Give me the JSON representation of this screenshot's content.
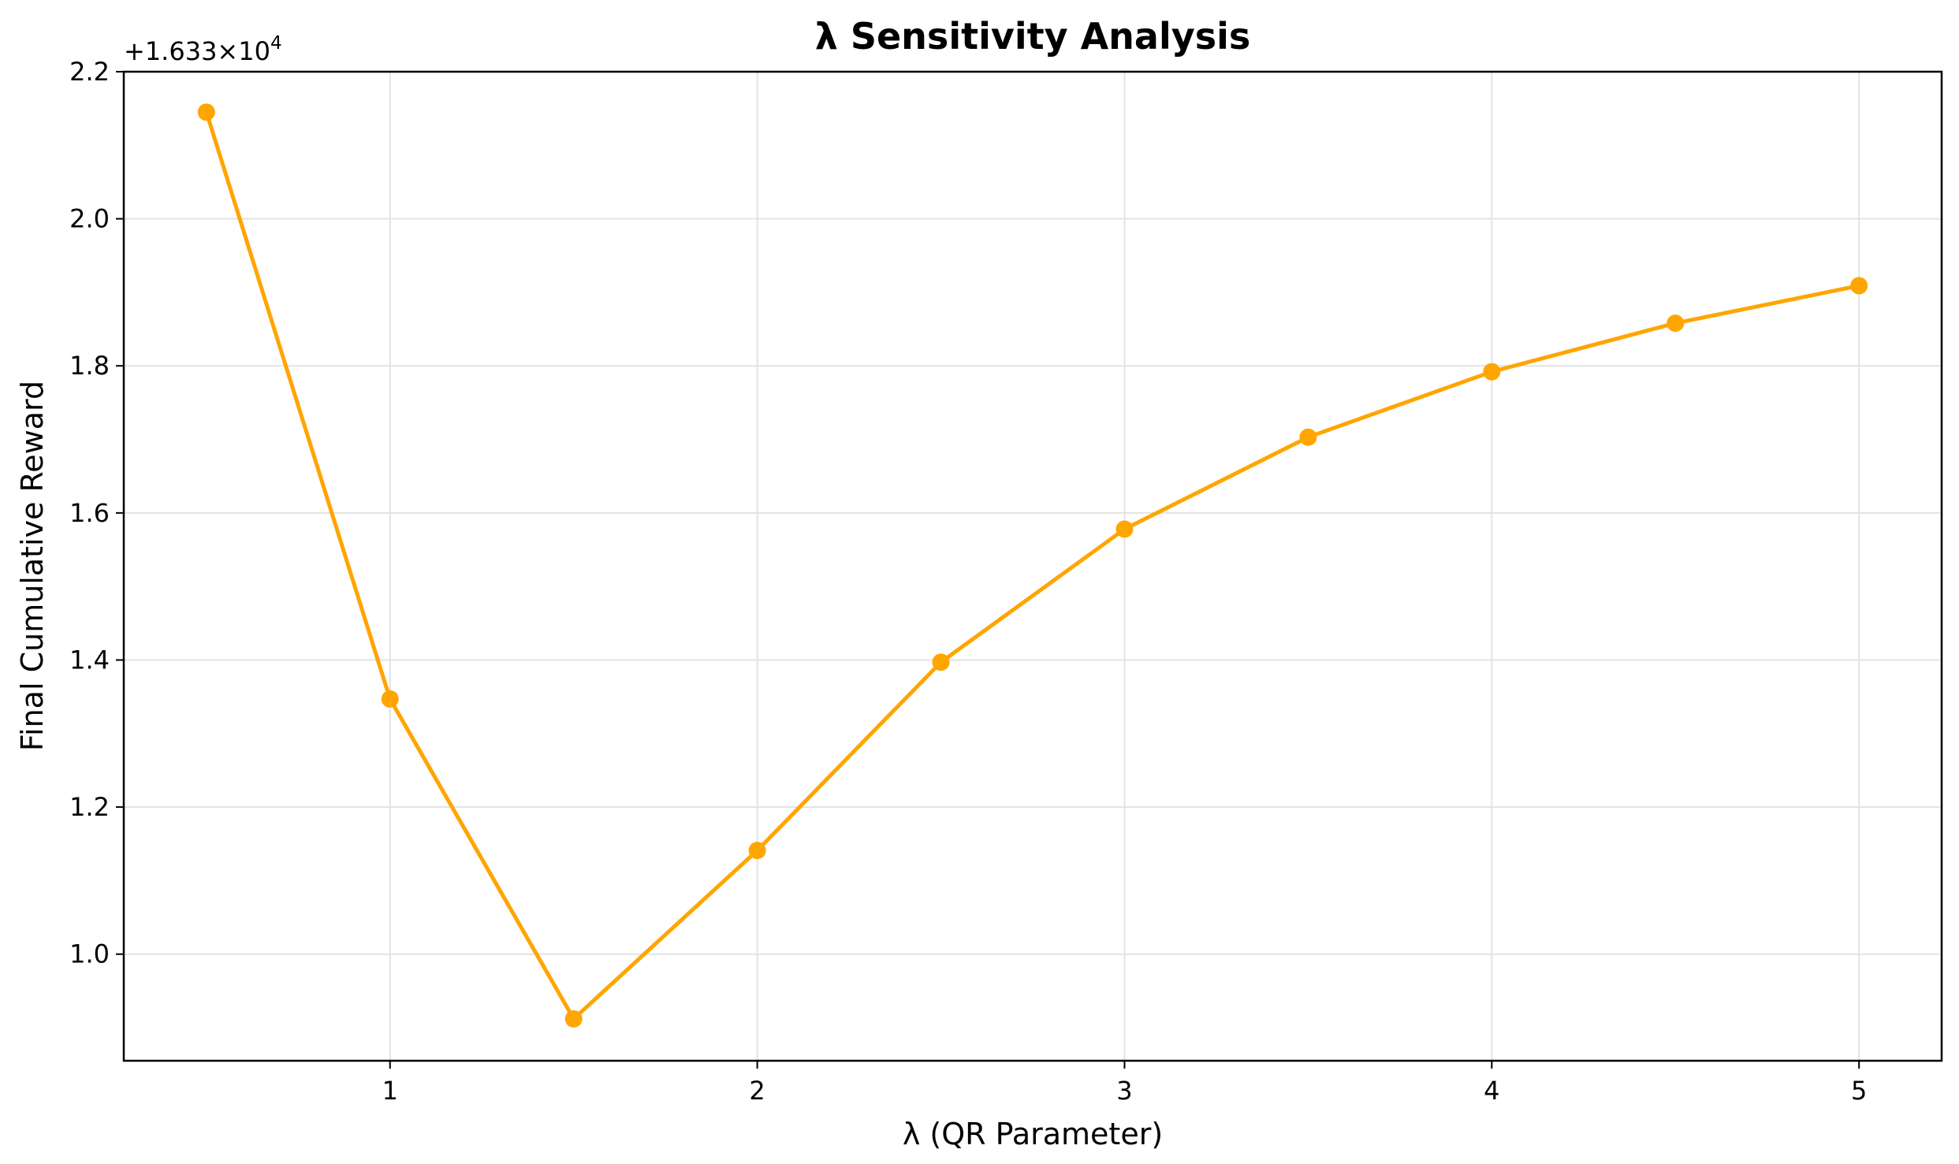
{
  "chart_data": {
    "type": "line",
    "title": "λ Sensitivity Analysis",
    "xlabel": "λ (QR Parameter)",
    "ylabel": "Final Cumulative Reward",
    "offset_label": "+1.633×10",
    "offset_exponent": "4",
    "x": [
      0.5,
      1.0,
      1.5,
      2.0,
      2.5,
      3.0,
      3.5,
      4.0,
      4.5,
      5.0
    ],
    "series": [
      {
        "values": [
          2.145,
          1.347,
          0.912,
          1.141,
          1.397,
          1.578,
          1.703,
          1.792,
          1.858,
          1.909
        ],
        "color": "#FFA500",
        "marker": "circle"
      }
    ],
    "xlim": [
      0.275,
      5.225
    ],
    "ylim": [
      0.855,
      2.2
    ],
    "xticks": [
      1,
      2,
      3,
      4,
      5
    ],
    "xtick_labels": [
      "1",
      "2",
      "3",
      "4",
      "5"
    ],
    "yticks": [
      1.0,
      1.2,
      1.4,
      1.6,
      1.8,
      2.0,
      2.2
    ],
    "ytick_labels": [
      "1.0",
      "1.2",
      "1.4",
      "1.6",
      "1.8",
      "2.0",
      "2.2"
    ],
    "grid": true
  }
}
